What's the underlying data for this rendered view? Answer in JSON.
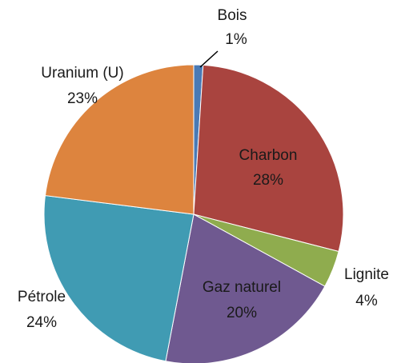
{
  "chart_data": {
    "type": "pie",
    "categories": [
      "Bois",
      "Charbon",
      "Lignite",
      "Gaz naturel",
      "Pétrole",
      "Uranium (U)"
    ],
    "values": [
      1,
      28,
      4,
      20,
      24,
      23
    ],
    "value_labels": [
      "1%",
      "28%",
      "4%",
      "20%",
      "24%",
      "23%"
    ],
    "colors": [
      "#4a7ab5",
      "#a9443f",
      "#8fac4e",
      "#6f5990",
      "#409bb3",
      "#dd843e"
    ]
  }
}
